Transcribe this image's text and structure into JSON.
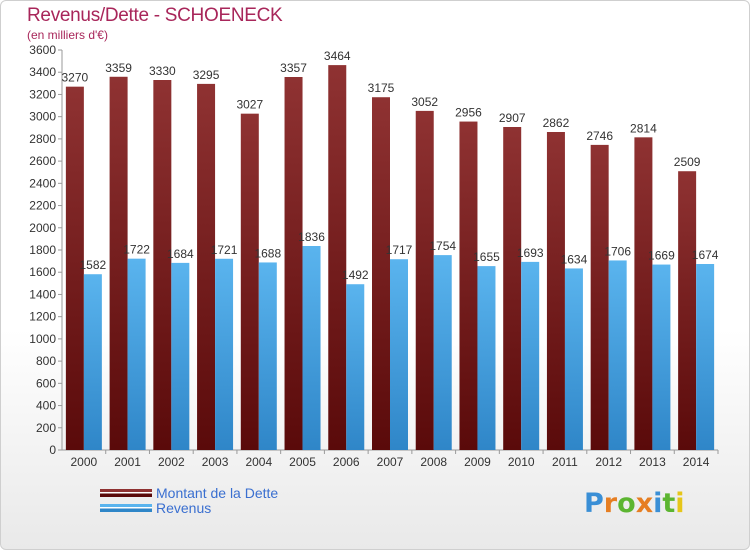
{
  "header": {
    "title": "Revenus/Dette - SCHOENECK",
    "subtitle": "(en milliers d'€)"
  },
  "chart_data": {
    "type": "bar",
    "categories": [
      "2000",
      "2001",
      "2002",
      "2003",
      "2004",
      "2005",
      "2006",
      "2007",
      "2008",
      "2009",
      "2010",
      "2011",
      "2012",
      "2013",
      "2014"
    ],
    "series": [
      {
        "name": "Montant de la Dette",
        "values": [
          3270,
          3359,
          3330,
          3295,
          3027,
          3357,
          3464,
          3175,
          3052,
          2956,
          2907,
          2862,
          2746,
          2814,
          2509
        ],
        "color": "#7a1f1f"
      },
      {
        "name": "Revenus",
        "values": [
          1582,
          1722,
          1684,
          1721,
          1688,
          1836,
          1492,
          1717,
          1754,
          1655,
          1693,
          1634,
          1706,
          1669,
          1674
        ],
        "color": "#3f9ee0"
      }
    ],
    "yticks": [
      "0",
      "200",
      "400",
      "600",
      "800",
      "1000",
      "1200",
      "1400",
      "1600",
      "1800",
      "2000",
      "2200",
      "2400",
      "2600",
      "2800",
      "3000",
      "3200",
      "3400",
      "3600"
    ],
    "ylim": [
      0,
      3600
    ],
    "grid": false,
    "legend_position": "bottom-left"
  },
  "legend": {
    "items": [
      {
        "label": "Montant de la Dette",
        "color": "#7a1f1f"
      },
      {
        "label": "Revenus",
        "color": "#3f9ee0"
      }
    ]
  },
  "logo": {
    "letters": [
      "P",
      "r",
      "o",
      "x",
      "i",
      "t",
      "i"
    ],
    "colors": [
      "#3a8fd6",
      "#e67e22",
      "#5cb531",
      "#e67e22",
      "#3a8fd6",
      "#5cb531",
      "#e6c619"
    ]
  }
}
